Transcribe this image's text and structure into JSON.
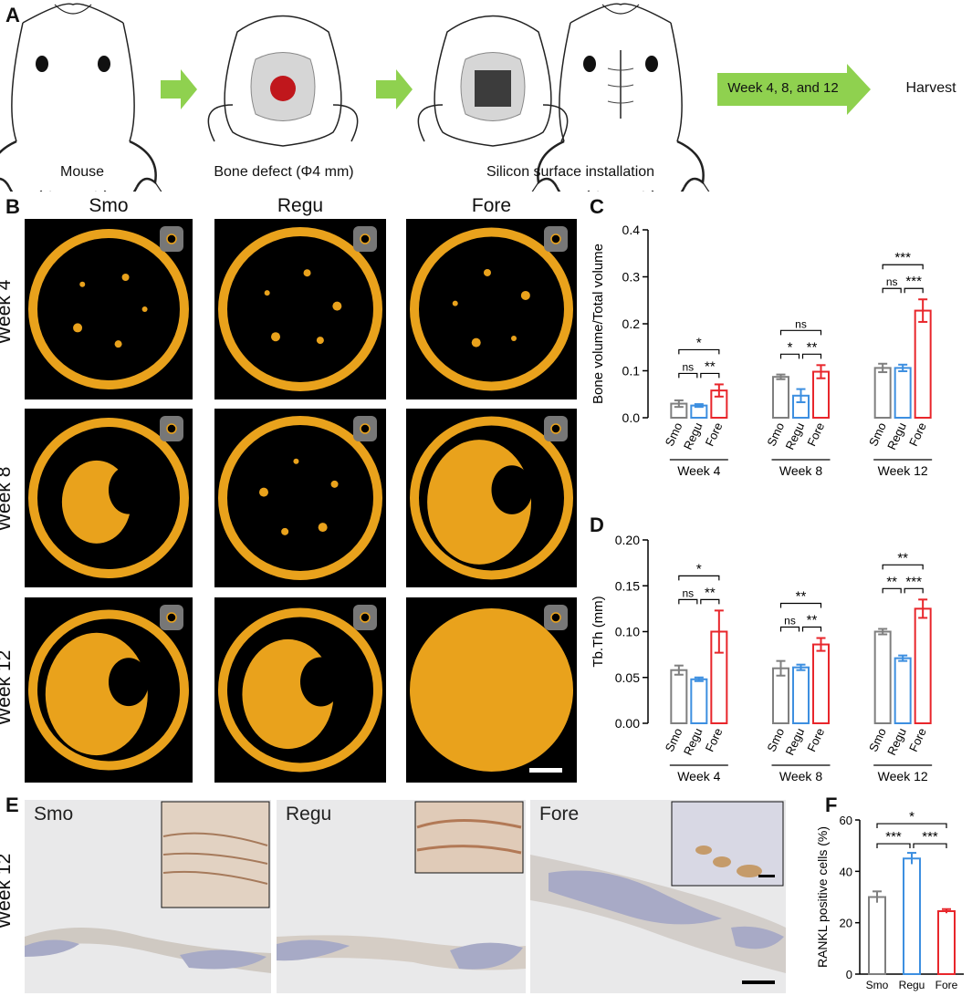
{
  "panels": {
    "a": "A",
    "b": "B",
    "c": "C",
    "d": "D",
    "e": "E",
    "f": "F"
  },
  "panel_a": {
    "steps": [
      "Mouse",
      "Bone defect (Φ4 mm)",
      "Silicon surface installation"
    ],
    "timeline": "Week 4, 8, and 12",
    "end": "Harvest",
    "colors": {
      "arrow": "#8fd14f",
      "defect": "#c0171c",
      "implant": "#3c3c3c"
    }
  },
  "panel_b": {
    "columns": [
      "Smo",
      "Regu",
      "Fore"
    ],
    "rows": [
      "Week 4",
      "Week 8",
      "Week 12"
    ],
    "bone_color": "#e9a21c",
    "coverage": [
      [
        0.15,
        0.18,
        0.17
      ],
      [
        0.33,
        0.12,
        0.72
      ],
      [
        0.72,
        0.55,
        1.0
      ]
    ]
  },
  "panel_e": {
    "row": "Week 12",
    "columns": [
      "Smo",
      "Regu",
      "Fore"
    ]
  },
  "chart_data": [
    {
      "id": "C",
      "type": "bar",
      "ylabel": "Bone volume/Total volume",
      "ylim": [
        0,
        0.4
      ],
      "yticks": [
        "0.0",
        "0.1",
        "0.2",
        "0.3",
        "0.4"
      ],
      "groups": [
        "Week 4",
        "Week 8",
        "Week 12"
      ],
      "categories": [
        "Smo",
        "Regu",
        "Fore"
      ],
      "colors": [
        "#7f7f7f",
        "#3d8fe0",
        "#e8262b"
      ],
      "values": [
        [
          0.03,
          0.026,
          0.058
        ],
        [
          0.087,
          0.047,
          0.098
        ],
        [
          0.106,
          0.106,
          0.228
        ]
      ],
      "errors": [
        [
          0.007,
          0.003,
          0.013
        ],
        [
          0.005,
          0.014,
          0.014
        ],
        [
          0.009,
          0.007,
          0.024
        ]
      ],
      "annotations": [
        [
          {
            "from": 0,
            "to": 2,
            "text": "*"
          },
          {
            "from": 0,
            "to": 1,
            "text": "ns"
          },
          {
            "from": 1,
            "to": 2,
            "text": "**"
          }
        ],
        [
          {
            "from": 0,
            "to": 2,
            "text": "ns"
          },
          {
            "from": 0,
            "to": 1,
            "text": "*"
          },
          {
            "from": 1,
            "to": 2,
            "text": "**"
          }
        ],
        [
          {
            "from": 0,
            "to": 2,
            "text": "***"
          },
          {
            "from": 0,
            "to": 1,
            "text": "ns"
          },
          {
            "from": 1,
            "to": 2,
            "text": "***"
          }
        ]
      ]
    },
    {
      "id": "D",
      "type": "bar",
      "ylabel": "Tb.Th (mm)",
      "ylim": [
        0,
        0.2
      ],
      "yticks": [
        "0.00",
        "0.05",
        "0.10",
        "0.15",
        "0.20"
      ],
      "groups": [
        "Week 4",
        "Week 8",
        "Week 12"
      ],
      "categories": [
        "Smo",
        "Regu",
        "Fore"
      ],
      "colors": [
        "#7f7f7f",
        "#3d8fe0",
        "#e8262b"
      ],
      "values": [
        [
          0.058,
          0.048,
          0.1
        ],
        [
          0.06,
          0.061,
          0.086
        ],
        [
          0.1,
          0.071,
          0.125
        ]
      ],
      "errors": [
        [
          0.005,
          0.002,
          0.023
        ],
        [
          0.008,
          0.003,
          0.007
        ],
        [
          0.003,
          0.003,
          0.01
        ]
      ],
      "annotations": [
        [
          {
            "from": 0,
            "to": 2,
            "text": "*"
          },
          {
            "from": 0,
            "to": 1,
            "text": "ns"
          },
          {
            "from": 1,
            "to": 2,
            "text": "**"
          }
        ],
        [
          {
            "from": 0,
            "to": 2,
            "text": "**"
          },
          {
            "from": 0,
            "to": 1,
            "text": "ns"
          },
          {
            "from": 1,
            "to": 2,
            "text": "**"
          }
        ],
        [
          {
            "from": 0,
            "to": 2,
            "text": "**"
          },
          {
            "from": 0,
            "to": 1,
            "text": "**"
          },
          {
            "from": 1,
            "to": 2,
            "text": "***"
          }
        ]
      ]
    },
    {
      "id": "F",
      "type": "bar",
      "ylabel": "RANKL positive cells (%)",
      "ylim": [
        0,
        60
      ],
      "yticks": [
        "0",
        "20",
        "40",
        "60"
      ],
      "categories": [
        "Smo",
        "Regu",
        "Fore"
      ],
      "colors": [
        "#7f7f7f",
        "#3d8fe0",
        "#e8262b"
      ],
      "values": [
        30,
        45,
        24.5
      ],
      "errors": [
        2.2,
        2.2,
        0.8
      ],
      "annotations": [
        {
          "from": 0,
          "to": 2,
          "text": "*"
        },
        {
          "from": 0,
          "to": 1,
          "text": "***"
        },
        {
          "from": 1,
          "to": 2,
          "text": "***"
        }
      ]
    }
  ]
}
